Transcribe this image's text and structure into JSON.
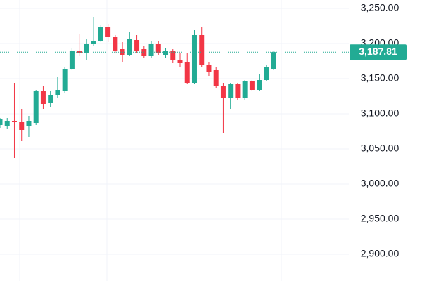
{
  "chart_data": {
    "type": "candlestick",
    "ylim": [
      2862,
      3262
    ],
    "yticks": [
      {
        "value": 3250,
        "label": "3,250.00"
      },
      {
        "value": 3200,
        "label": "3,200.00"
      },
      {
        "value": 3150,
        "label": "3,150.00"
      },
      {
        "value": 3100,
        "label": "3,100.00"
      },
      {
        "value": 3050,
        "label": "3,050.00"
      },
      {
        "value": 3000,
        "label": "3,000.00"
      },
      {
        "value": 2950,
        "label": "2,950.00"
      },
      {
        "value": 2900,
        "label": "2,900.00"
      }
    ],
    "grid": true,
    "up_color": "#22ab94",
    "down_color": "#f23645",
    "open": [
      3084,
      3082,
      3090,
      3089,
      3082,
      3087,
      3132,
      3115,
      3127,
      3132,
      3164,
      3190,
      3187,
      3199,
      3204,
      3224,
      3210,
      3192,
      3184,
      3205,
      3192,
      3182,
      3200,
      3184,
      3189,
      3177,
      3174,
      3144,
      3212,
      3170,
      3162,
      3140,
      3122,
      3142,
      3122,
      3146,
      3134,
      3148,
      3164
    ],
    "high": [
      3094,
      3094,
      3144,
      3107,
      3097,
      3134,
      3140,
      3132,
      3152,
      3166,
      3194,
      3214,
      3207,
      3238,
      3227,
      3228,
      3212,
      3202,
      3217,
      3212,
      3197,
      3204,
      3204,
      3194,
      3192,
      3187,
      3187,
      3220,
      3224,
      3174,
      3166,
      3144,
      3144,
      3144,
      3148,
      3148,
      3156,
      3170,
      3190
    ],
    "low": [
      3080,
      3078,
      3037,
      3062,
      3067,
      3084,
      3107,
      3110,
      3122,
      3130,
      3162,
      3182,
      3177,
      3197,
      3202,
      3202,
      3187,
      3174,
      3182,
      3187,
      3179,
      3180,
      3184,
      3180,
      3172,
      3167,
      3142,
      3142,
      3167,
      3154,
      3137,
      3072,
      3107,
      3120,
      3120,
      3132,
      3132,
      3146,
      3162
    ],
    "close": [
      3092,
      3090,
      3088,
      3077,
      3090,
      3132,
      3114,
      3127,
      3134,
      3164,
      3190,
      3187,
      3200,
      3204,
      3224,
      3210,
      3190,
      3184,
      3207,
      3190,
      3182,
      3200,
      3187,
      3190,
      3177,
      3172,
      3144,
      3212,
      3170,
      3160,
      3140,
      3122,
      3142,
      3122,
      3146,
      3134,
      3148,
      3166,
      3187.81
    ],
    "last_price": {
      "value": 3187.81,
      "label": "3,187.81"
    }
  }
}
